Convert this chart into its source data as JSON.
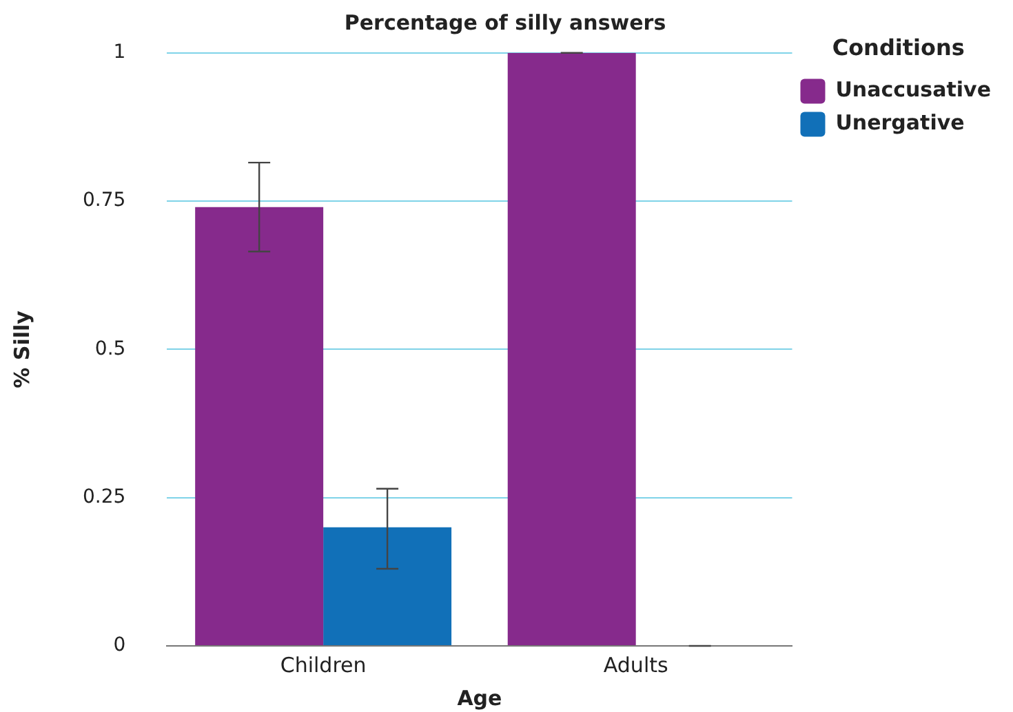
{
  "chart_data": {
    "type": "bar",
    "title": "Percentage of silly answers",
    "xlabel": "Age",
    "ylabel": "% Silly",
    "legend_title": "Conditions",
    "categories": [
      "Children",
      "Adults"
    ],
    "series": [
      {
        "name": "Unaccusative",
        "color": "#862a8c",
        "values": [
          0.74,
          1
        ],
        "errors": [
          [
            0.665,
            0.815
          ],
          0
        ]
      },
      {
        "name": "Unergative",
        "color": "#1170b8",
        "values": [
          0.2,
          0
        ],
        "errors": [
          [
            0.13,
            0.265
          ],
          0
        ]
      }
    ],
    "ylim": [
      0,
      1
    ],
    "yticks": [
      0,
      0.25,
      0.5,
      0.75,
      1
    ],
    "grid": "y",
    "legend": "top right"
  }
}
